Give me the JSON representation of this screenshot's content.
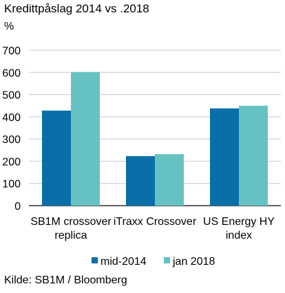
{
  "chart_data": {
    "type": "bar",
    "title": "Kredittpåslag 2014  vs .2018",
    "ylabel": "%",
    "categories": [
      [
        "SB1M crossover",
        "replica"
      ],
      [
        "iTraxx Crossover"
      ],
      [
        "US Energy HY",
        "index"
      ]
    ],
    "series": [
      {
        "name": "mid-2014",
        "color": "#0a6fa8",
        "values": [
          428,
          223,
          438
        ]
      },
      {
        "name": "jan 2018",
        "color": "#66c2c2",
        "values": [
          602,
          232,
          450
        ]
      }
    ],
    "ylim": [
      0,
      700
    ],
    "yticks": [
      "0",
      "100",
      "200",
      "300",
      "400",
      "500",
      "600",
      "700"
    ],
    "grid": true,
    "legend_position": "bottom"
  },
  "source": "Kilde: SB1M / Bloomberg"
}
